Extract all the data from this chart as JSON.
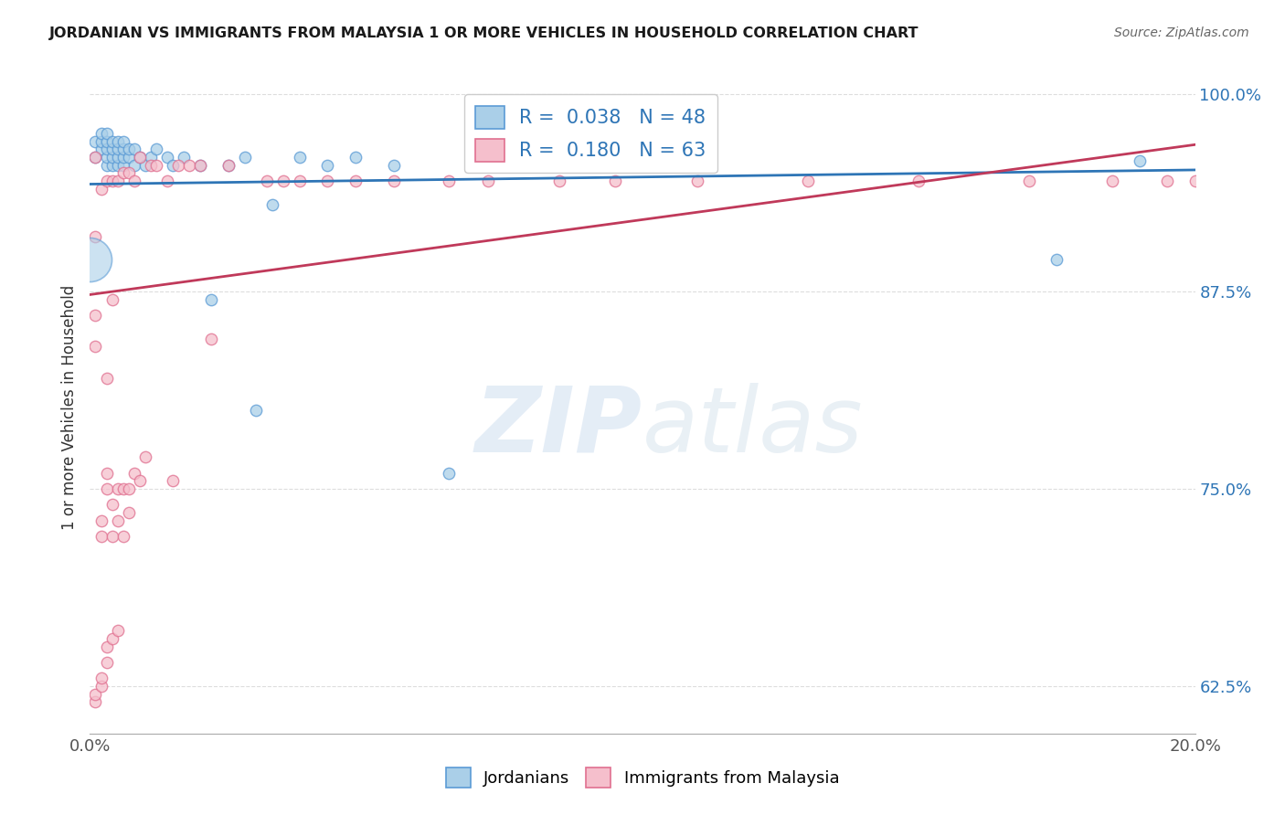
{
  "title": "JORDANIAN VS IMMIGRANTS FROM MALAYSIA 1 OR MORE VEHICLES IN HOUSEHOLD CORRELATION CHART",
  "source": "Source: ZipAtlas.com",
  "ylabel": "1 or more Vehicles in Household",
  "xlim": [
    0.0,
    0.2
  ],
  "ylim": [
    0.595,
    1.008
  ],
  "yticks": [
    0.625,
    0.75,
    0.875,
    1.0
  ],
  "ytick_labels": [
    "62.5%",
    "75.0%",
    "87.5%",
    "100.0%"
  ],
  "xticks": [
    0.0,
    0.025,
    0.05,
    0.075,
    0.1,
    0.125,
    0.15,
    0.175,
    0.2
  ],
  "blue_color": "#aacfe8",
  "pink_color": "#f5bfcc",
  "blue_edge_color": "#5b9bd5",
  "pink_edge_color": "#e07090",
  "blue_line_color": "#2e75b6",
  "pink_line_color": "#c0395a",
  "text_color": "#2e75b6",
  "blue_R": 0.038,
  "blue_N": 48,
  "pink_R": 0.18,
  "pink_N": 63,
  "blue_x": [
    0.001,
    0.001,
    0.002,
    0.002,
    0.002,
    0.003,
    0.003,
    0.003,
    0.003,
    0.003,
    0.004,
    0.004,
    0.004,
    0.004,
    0.005,
    0.005,
    0.005,
    0.005,
    0.006,
    0.006,
    0.006,
    0.006,
    0.007,
    0.007,
    0.008,
    0.008,
    0.009,
    0.01,
    0.011,
    0.012,
    0.014,
    0.015,
    0.017,
    0.02,
    0.022,
    0.025,
    0.028,
    0.03,
    0.033,
    0.038,
    0.043,
    0.048,
    0.055,
    0.065,
    0.072,
    0.085,
    0.175,
    0.19
  ],
  "blue_y": [
    0.96,
    0.97,
    0.965,
    0.97,
    0.975,
    0.955,
    0.96,
    0.965,
    0.97,
    0.975,
    0.955,
    0.96,
    0.965,
    0.97,
    0.955,
    0.96,
    0.965,
    0.97,
    0.955,
    0.96,
    0.965,
    0.97,
    0.96,
    0.965,
    0.955,
    0.965,
    0.96,
    0.955,
    0.96,
    0.965,
    0.96,
    0.955,
    0.96,
    0.955,
    0.87,
    0.955,
    0.96,
    0.8,
    0.93,
    0.96,
    0.955,
    0.96,
    0.955,
    0.76,
    0.955,
    0.96,
    0.895,
    0.958
  ],
  "blue_sizes": [
    80,
    80,
    80,
    80,
    80,
    80,
    80,
    80,
    80,
    80,
    80,
    80,
    80,
    80,
    80,
    80,
    80,
    80,
    80,
    80,
    80,
    80,
    80,
    80,
    80,
    80,
    80,
    80,
    80,
    80,
    80,
    80,
    80,
    80,
    80,
    80,
    80,
    80,
    80,
    80,
    80,
    80,
    80,
    80,
    80,
    80,
    80,
    80
  ],
  "blue_large_x": [
    0.0
  ],
  "blue_large_y": [
    0.895
  ],
  "blue_large_size": [
    1200
  ],
  "pink_x": [
    0.001,
    0.001,
    0.001,
    0.001,
    0.001,
    0.001,
    0.002,
    0.002,
    0.002,
    0.002,
    0.002,
    0.003,
    0.003,
    0.003,
    0.003,
    0.003,
    0.003,
    0.004,
    0.004,
    0.004,
    0.004,
    0.004,
    0.005,
    0.005,
    0.005,
    0.005,
    0.006,
    0.006,
    0.006,
    0.007,
    0.007,
    0.007,
    0.008,
    0.008,
    0.009,
    0.009,
    0.01,
    0.011,
    0.012,
    0.014,
    0.015,
    0.016,
    0.018,
    0.02,
    0.022,
    0.025,
    0.032,
    0.035,
    0.038,
    0.043,
    0.048,
    0.055,
    0.065,
    0.072,
    0.085,
    0.095,
    0.11,
    0.13,
    0.15,
    0.17,
    0.185,
    0.195,
    0.2
  ],
  "pink_y": [
    0.615,
    0.62,
    0.84,
    0.86,
    0.91,
    0.96,
    0.625,
    0.63,
    0.72,
    0.73,
    0.94,
    0.64,
    0.65,
    0.75,
    0.76,
    0.82,
    0.945,
    0.655,
    0.72,
    0.74,
    0.87,
    0.945,
    0.66,
    0.73,
    0.75,
    0.945,
    0.72,
    0.75,
    0.95,
    0.735,
    0.75,
    0.95,
    0.76,
    0.945,
    0.755,
    0.96,
    0.77,
    0.955,
    0.955,
    0.945,
    0.755,
    0.955,
    0.955,
    0.955,
    0.845,
    0.955,
    0.945,
    0.945,
    0.945,
    0.945,
    0.945,
    0.945,
    0.945,
    0.945,
    0.945,
    0.945,
    0.945,
    0.945,
    0.945,
    0.945,
    0.945,
    0.945,
    0.945
  ],
  "pink_sizes": [
    80,
    80,
    80,
    80,
    80,
    80,
    80,
    80,
    80,
    80,
    80,
    80,
    80,
    80,
    80,
    80,
    80,
    80,
    80,
    80,
    80,
    80,
    80,
    80,
    80,
    80,
    80,
    80,
    80,
    80,
    80,
    80,
    80,
    80,
    80,
    80,
    80,
    80,
    80,
    80,
    80,
    80,
    80,
    80,
    80,
    80,
    80,
    80,
    80,
    80,
    80,
    80,
    80,
    80,
    80,
    80,
    80,
    80,
    80,
    80,
    80,
    80,
    80
  ],
  "watermark_zip": "ZIP",
  "watermark_atlas": "atlas",
  "grid_color": "#dddddd",
  "spine_color": "#aaaaaa"
}
